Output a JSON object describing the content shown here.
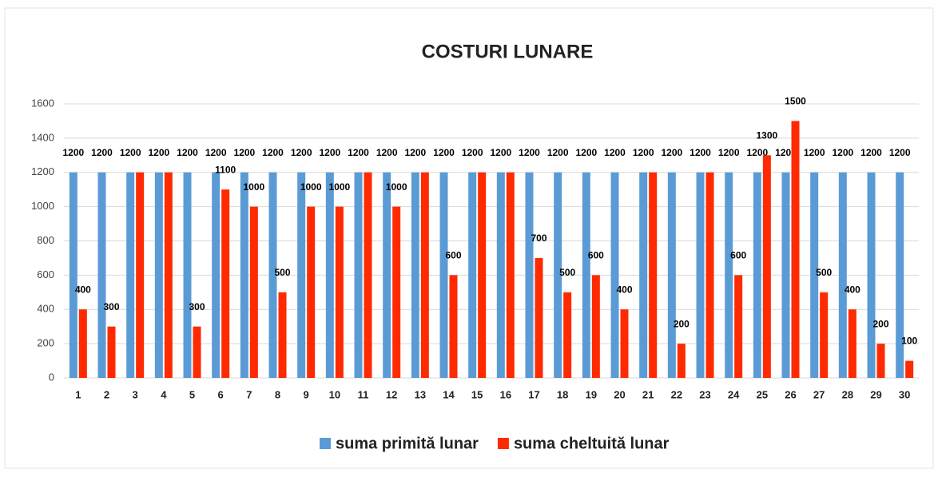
{
  "chart_data": {
    "type": "bar",
    "title": "COSTURI LUNARE",
    "categories": [
      "1",
      "2",
      "3",
      "4",
      "5",
      "6",
      "7",
      "8",
      "9",
      "10",
      "11",
      "12",
      "13",
      "14",
      "15",
      "16",
      "17",
      "18",
      "19",
      "20",
      "21",
      "22",
      "23",
      "24",
      "25",
      "26",
      "27",
      "28",
      "29",
      "30"
    ],
    "series": [
      {
        "name": "suma primită lunar",
        "color": "#5b9bd5",
        "values": [
          1200,
          1200,
          1200,
          1200,
          1200,
          1200,
          1200,
          1200,
          1200,
          1200,
          1200,
          1200,
          1200,
          1200,
          1200,
          1200,
          1200,
          1200,
          1200,
          1200,
          1200,
          1200,
          1200,
          1200,
          1200,
          1200,
          1200,
          1200,
          1200,
          1200
        ]
      },
      {
        "name": "suma cheltuită lunar",
        "color": "#ff2a00",
        "values": [
          400,
          300,
          1200,
          1200,
          300,
          1100,
          1000,
          500,
          1000,
          1000,
          1200,
          1000,
          1200,
          600,
          1200,
          1200,
          700,
          500,
          600,
          400,
          1200,
          200,
          1200,
          600,
          1300,
          1500,
          500,
          400,
          200,
          100
        ]
      }
    ],
    "ylim": [
      0,
      1600
    ],
    "yticks": [
      0,
      200,
      400,
      600,
      800,
      1000,
      1200,
      1400,
      1600
    ],
    "grid": true,
    "legend": "bottom"
  }
}
